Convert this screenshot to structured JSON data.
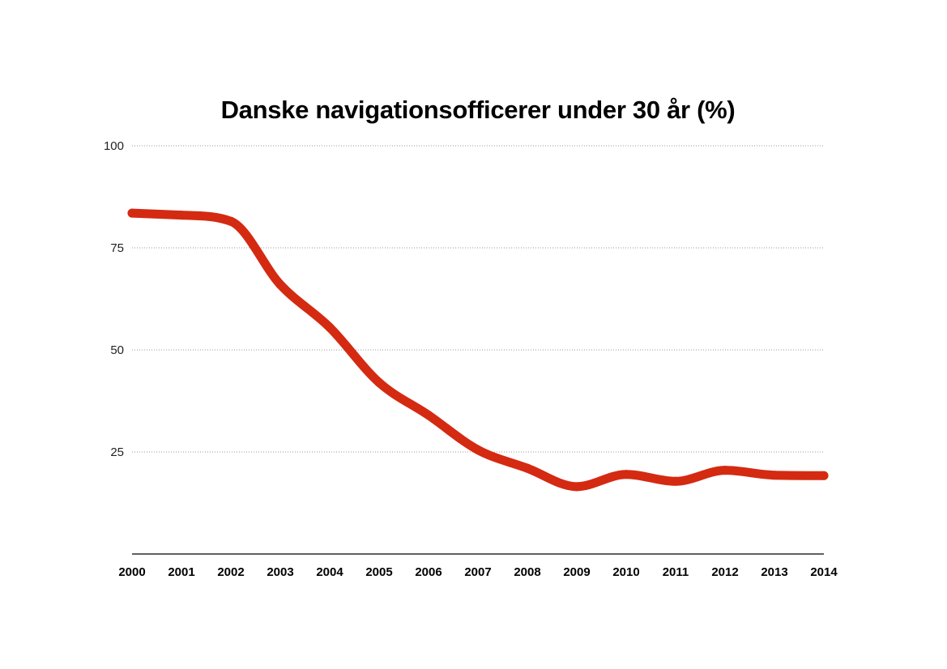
{
  "chart_data": {
    "type": "line",
    "title": "Danske navigationsofficerer under 30 år (%)",
    "xlabel": "",
    "ylabel": "",
    "x": [
      "2000",
      "2001",
      "2002",
      "2003",
      "2004",
      "2005",
      "2006",
      "2007",
      "2008",
      "2009",
      "2010",
      "2011",
      "2012",
      "2013",
      "2014"
    ],
    "series": [
      {
        "values": [
          83.5,
          83.0,
          81.5,
          66.0,
          55.5,
          42.0,
          34.0,
          25.5,
          21.0,
          16.5,
          19.5,
          17.8,
          20.5,
          19.3,
          19.2
        ],
        "color": "#d42a12"
      }
    ],
    "ylim": [
      0,
      100
    ],
    "yticks": [
      25,
      50,
      75,
      100
    ],
    "grid": true,
    "legend": "none"
  }
}
